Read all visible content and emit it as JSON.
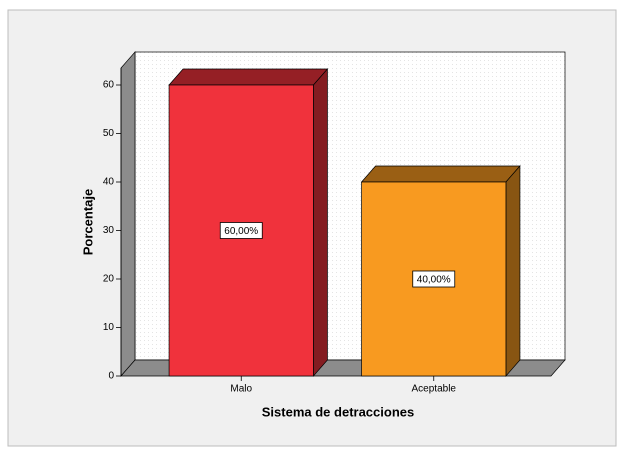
{
  "chart_data": {
    "type": "bar3d",
    "x_label": "Sistema de detracciones",
    "y_label": "Porcentaje",
    "categories": [
      "Malo",
      "Aceptable"
    ],
    "values": [
      60,
      40
    ],
    "value_labels": [
      "60,00%",
      "40,00%"
    ],
    "colors": [
      "#f0323c",
      "#f89a20"
    ],
    "ylim": [
      0,
      60
    ],
    "yticks": [
      0,
      10,
      20,
      30,
      40,
      50,
      60
    ]
  }
}
